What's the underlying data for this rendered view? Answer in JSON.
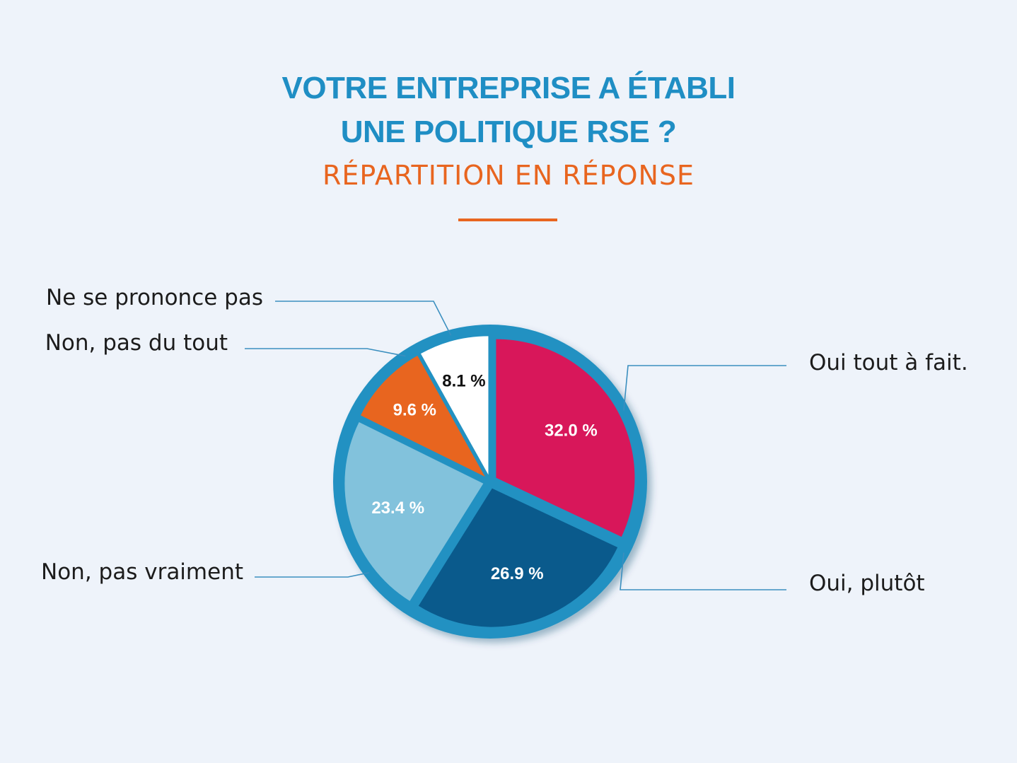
{
  "title_line1": "VOTRE ENTREPRISE A ÉTABLI",
  "title_line2": "UNE POLITIQUE RSE ?",
  "subtitle": "RÉPARTITION EN RÉPONSE",
  "colors": {
    "title": "#1f8ec4",
    "accent": "#e8651f",
    "ring": "#2391c2",
    "leader": "#3b8fbf",
    "background": "#eef3fa"
  },
  "chart_data": {
    "type": "pie",
    "categories": [
      "Oui tout à fait.",
      "Oui, plutôt",
      "Non, pas vraiment",
      "Non, pas du tout",
      "Ne se prononce pas"
    ],
    "values": [
      32.0,
      26.9,
      23.4,
      9.6,
      8.1
    ],
    "value_labels": [
      "32.0 %",
      "26.9 %",
      "23.4 %",
      "9.6 %",
      "8.1 %"
    ],
    "colors": [
      "#d8175a",
      "#0a5a8c",
      "#82c2dc",
      "#e8651f",
      "#ffffff"
    ],
    "label_colors": [
      "#ffffff",
      "#ffffff",
      "#ffffff",
      "#ffffff",
      "#111111"
    ],
    "unit": "%"
  }
}
